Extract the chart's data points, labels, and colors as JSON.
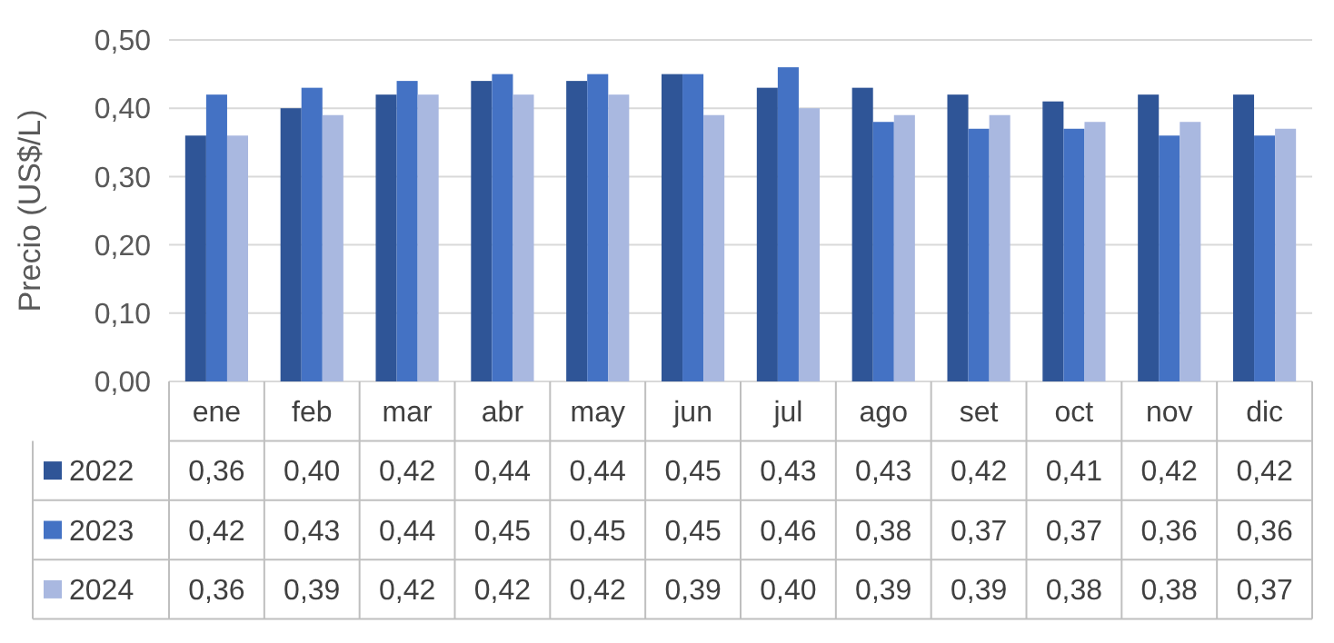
{
  "chart_data": {
    "type": "bar",
    "ylabel": "Precio  (US$/L)",
    "categories": [
      "ene",
      "feb",
      "mar",
      "abr",
      "may",
      "jun",
      "jul",
      "ago",
      "set",
      "oct",
      "nov",
      "dic"
    ],
    "series": [
      {
        "name": "2022",
        "color": "#2f5597",
        "values": [
          0.36,
          0.4,
          0.42,
          0.44,
          0.44,
          0.45,
          0.43,
          0.43,
          0.42,
          0.41,
          0.42,
          0.42
        ],
        "value_labels": [
          "0,36",
          "0,40",
          "0,42",
          "0,44",
          "0,44",
          "0,45",
          "0,43",
          "0,43",
          "0,42",
          "0,41",
          "0,42",
          "0,42"
        ]
      },
      {
        "name": "2023",
        "color": "#4472c4",
        "values": [
          0.42,
          0.43,
          0.44,
          0.45,
          0.45,
          0.45,
          0.46,
          0.38,
          0.37,
          0.37,
          0.36,
          0.36
        ],
        "value_labels": [
          "0,42",
          "0,43",
          "0,44",
          "0,45",
          "0,45",
          "0,45",
          "0,46",
          "0,38",
          "0,37",
          "0,37",
          "0,36",
          "0,36"
        ]
      },
      {
        "name": "2024",
        "color": "#a9b8e0",
        "values": [
          0.36,
          0.39,
          0.42,
          0.42,
          0.42,
          0.39,
          0.4,
          0.39,
          0.39,
          0.38,
          0.38,
          0.37
        ],
        "value_labels": [
          "0,36",
          "0,39",
          "0,42",
          "0,42",
          "0,42",
          "0,39",
          "0,40",
          "0,39",
          "0,39",
          "0,38",
          "0,38",
          "0,37"
        ]
      }
    ],
    "ylim": [
      0,
      0.5
    ],
    "yticks": [
      {
        "value": 0,
        "label": "0,00"
      },
      {
        "value": 0.1,
        "label": "0,10"
      },
      {
        "value": 0.2,
        "label": "0,20"
      },
      {
        "value": 0.3,
        "label": "0,30"
      },
      {
        "value": 0.4,
        "label": "0,40"
      },
      {
        "value": 0.5,
        "label": "0,50"
      }
    ],
    "grid": "y",
    "legend": "bottom left"
  }
}
